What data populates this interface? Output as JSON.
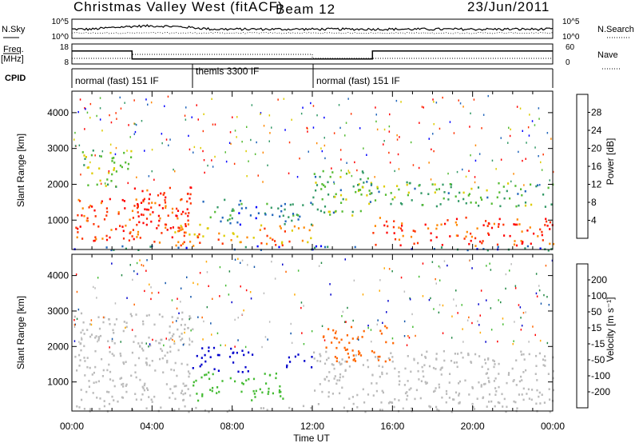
{
  "header": {
    "station": "Christmas Valley West (fitACF)",
    "beam": "Beam 12",
    "date": "23/Jun/2011"
  },
  "strips": {
    "nsky_label": "N.Sky",
    "nsearch_label": "N.Search",
    "noise_ticks": [
      "10^5",
      "10^0"
    ],
    "freq_label_1": "Freq.",
    "freq_label_2": "[MHz]",
    "freq_ticks": [
      "18",
      "8"
    ],
    "nave_label": "Nave",
    "nave_ticks": [
      "60",
      "0"
    ],
    "cpid_label": "CPID",
    "modes": [
      {
        "name": "normal (fast) 151 IF",
        "start_h": 0,
        "end_h": 6
      },
      {
        "name": "themis 3300 IF",
        "start_h": 6,
        "end_h": 12
      },
      {
        "name": "normal (fast) 151 IF",
        "start_h": 12,
        "end_h": 24
      }
    ],
    "freq_steps": [
      {
        "t": 0,
        "v": 14.5
      },
      {
        "t": 3,
        "v": 10.5
      },
      {
        "t": 12,
        "v": 10.5
      },
      {
        "t": 15,
        "v": 14.5
      },
      {
        "t": 24,
        "v": 14.5
      }
    ]
  },
  "chart_data": [
    {
      "type": "heatmap",
      "name": "Power",
      "ylabel": "Slant Range [km]",
      "xlabel": "Time UT",
      "x_ticks": [
        "00:00",
        "04:00",
        "08:00",
        "12:00",
        "16:00",
        "20:00",
        "00:00"
      ],
      "xlim_hours": [
        0,
        24
      ],
      "ylim_km": [
        180,
        4600
      ],
      "y_ticks": [
        1000,
        2000,
        3000,
        4000
      ],
      "colorbar": {
        "label": "Power [dB]",
        "ticks": [
          4,
          8,
          12,
          16,
          20,
          24,
          28
        ],
        "range": [
          0,
          30
        ],
        "colors": [
          "#0000ff",
          "#2266bb",
          "#339966",
          "#55bb33",
          "#ddcc00",
          "#ff8800",
          "#ff3300",
          "#ff0000"
        ]
      },
      "regions": [
        {
          "t0": 0.1,
          "t1": 5.9,
          "r0": 400,
          "r1": 1700,
          "level": 24
        },
        {
          "t0": 0.5,
          "t1": 3.0,
          "r0": 1900,
          "r1": 3000,
          "level": 14
        },
        {
          "t0": 3.0,
          "t1": 6.0,
          "r0": 800,
          "r1": 2000,
          "level": 27
        },
        {
          "t0": 5.0,
          "t1": 12.0,
          "r0": 300,
          "r1": 900,
          "level": 20
        },
        {
          "t0": 6.5,
          "t1": 12.0,
          "r0": 900,
          "r1": 1600,
          "level": 8
        },
        {
          "t0": 12.0,
          "t1": 15.0,
          "r0": 1100,
          "r1": 2400,
          "level": 12
        },
        {
          "t0": 14.0,
          "t1": 24.0,
          "r0": 1400,
          "r1": 2100,
          "level": 12
        },
        {
          "t0": 15.0,
          "t1": 24.0,
          "r0": 300,
          "r1": 1100,
          "level": 25
        },
        {
          "t0": 0.0,
          "t1": 24.0,
          "r0": 180,
          "r1": 300,
          "level": 6
        }
      ]
    },
    {
      "type": "heatmap",
      "name": "Velocity",
      "ylabel": "Slant Range [km]",
      "xlabel": "Time UT",
      "x_ticks": [
        "00:00",
        "04:00",
        "08:00",
        "12:00",
        "16:00",
        "20:00",
        "00:00"
      ],
      "xlim_hours": [
        0,
        24
      ],
      "ylim_km": [
        180,
        4600
      ],
      "y_ticks": [
        1000,
        2000,
        3000,
        4000
      ],
      "colorbar": {
        "label": "Velocity [m s⁻¹]",
        "ticks": [
          "200",
          "100",
          "50",
          "15",
          "-15",
          "-50",
          "-100",
          "-200"
        ],
        "range": [
          -250,
          250
        ],
        "colors": [
          "#0000cc",
          "#1155aa",
          "#228844",
          "#44bb33",
          "#bbbbbb",
          "#bbbbbb",
          "#ffaa00",
          "#ff6600",
          "#ff0000"
        ]
      },
      "regions": [
        {
          "t0": 0.1,
          "t1": 6.0,
          "r0": 400,
          "r1": 3000,
          "level": 0
        },
        {
          "t0": 6.0,
          "t1": 9.0,
          "r0": 1300,
          "r1": 2000,
          "level": -200
        },
        {
          "t0": 6.0,
          "t1": 10.5,
          "r0": 500,
          "r1": 1300,
          "level": -60
        },
        {
          "t0": 10.5,
          "t1": 12.0,
          "r0": 1400,
          "r1": 1800,
          "level": -200
        },
        {
          "t0": 12.0,
          "t1": 13.5,
          "r0": 1400,
          "r1": 1700,
          "level": 60
        },
        {
          "t0": 12.5,
          "t1": 16.0,
          "r0": 1600,
          "r1": 2600,
          "level": 150
        },
        {
          "t0": 12.0,
          "t1": 24.0,
          "r0": 400,
          "r1": 1900,
          "level": 0
        },
        {
          "t0": 0.0,
          "t1": 24.0,
          "r0": 180,
          "r1": 350,
          "level": 40
        }
      ]
    }
  ]
}
